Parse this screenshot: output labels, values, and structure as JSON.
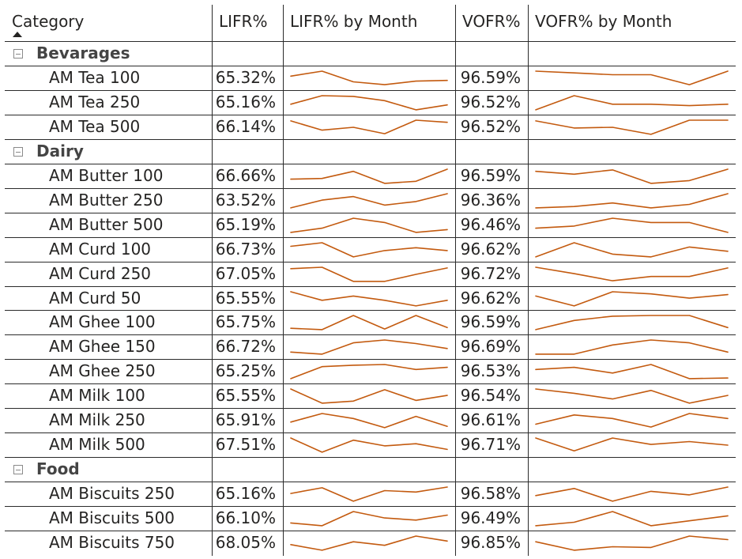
{
  "headers": {
    "category": "Category",
    "lifr": "LIFR%",
    "lifr_month": "LIFR% by Month",
    "vofr": "VOFR%",
    "vofr_month": "VOFR% by Month"
  },
  "colors": {
    "sparkline": "#c35a0f",
    "grid": "#2b2b2b"
  },
  "icons": {
    "sort": "sort-ascending-icon",
    "expand": "collapse-minus-icon"
  },
  "groups": [
    {
      "name": "Bevarages",
      "items": [
        {
          "name": "AM Tea 100",
          "lifr": "65.32%",
          "vofr": "96.59%",
          "lifr_trend": [
            0.35,
            0.0,
            0.75,
            0.95,
            0.7,
            0.65
          ],
          "vofr_trend": [
            0.0,
            0.12,
            0.25,
            0.25,
            0.95,
            0.0
          ]
        },
        {
          "name": "AM Tea 250",
          "lifr": "65.16%",
          "vofr": "96.52%",
          "lifr_trend": [
            0.6,
            0.0,
            0.05,
            0.35,
            1.0,
            0.65
          ],
          "vofr_trend": [
            1.0,
            0.0,
            0.6,
            0.6,
            0.7,
            0.6
          ]
        },
        {
          "name": "AM Tea 500",
          "lifr": "66.14%",
          "vofr": "96.52%",
          "lifr_trend": [
            0.05,
            0.7,
            0.5,
            0.95,
            0.0,
            0.15
          ],
          "vofr_trend": [
            0.05,
            0.55,
            0.5,
            1.0,
            0.0,
            0.0
          ]
        }
      ]
    },
    {
      "name": "Dairy",
      "items": [
        {
          "name": "AM Butter 100",
          "lifr": "66.66%",
          "vofr": "96.59%",
          "lifr_trend": [
            0.7,
            0.65,
            0.15,
            1.0,
            0.85,
            0.0
          ],
          "vofr_trend": [
            0.15,
            0.35,
            0.05,
            1.0,
            0.8,
            0.0
          ]
        },
        {
          "name": "AM Butter 250",
          "lifr": "63.52%",
          "vofr": "96.36%",
          "lifr_trend": [
            1.0,
            0.45,
            0.2,
            0.8,
            0.55,
            0.0
          ],
          "vofr_trend": [
            1.0,
            0.9,
            0.65,
            1.0,
            0.75,
            0.0
          ]
        },
        {
          "name": "AM Butter 500",
          "lifr": "65.19%",
          "vofr": "96.46%",
          "lifr_trend": [
            1.0,
            0.7,
            0.0,
            0.3,
            1.0,
            0.8
          ],
          "vofr_trend": [
            0.7,
            0.55,
            0.0,
            0.3,
            0.3,
            1.0
          ]
        },
        {
          "name": "AM Curd 100",
          "lifr": "66.73%",
          "vofr": "96.62%",
          "lifr_trend": [
            0.25,
            0.0,
            1.0,
            0.55,
            0.35,
            0.55
          ],
          "vofr_trend": [
            1.0,
            0.0,
            0.8,
            1.0,
            0.3,
            0.6
          ]
        },
        {
          "name": "AM Curd 250",
          "lifr": "67.05%",
          "vofr": "96.72%",
          "lifr_trend": [
            0.1,
            0.0,
            1.0,
            1.0,
            0.5,
            0.05
          ],
          "vofr_trend": [
            0.0,
            0.45,
            0.95,
            0.65,
            0.65,
            0.05
          ]
        },
        {
          "name": "AM Curd 50",
          "lifr": "65.55%",
          "vofr": "96.62%",
          "lifr_trend": [
            0.0,
            0.6,
            0.3,
            0.6,
            1.0,
            0.6
          ],
          "vofr_trend": [
            0.3,
            1.0,
            0.0,
            0.15,
            0.45,
            0.2
          ]
        },
        {
          "name": "AM Ghee 100",
          "lifr": "65.75%",
          "vofr": "96.59%",
          "lifr_trend": [
            0.9,
            1.0,
            0.0,
            0.95,
            0.0,
            0.85
          ],
          "vofr_trend": [
            1.0,
            0.35,
            0.05,
            0.0,
            0.0,
            0.85
          ]
        },
        {
          "name": "AM Ghee 150",
          "lifr": "66.72%",
          "vofr": "96.69%",
          "lifr_trend": [
            0.85,
            1.0,
            0.2,
            0.0,
            0.25,
            0.6
          ],
          "vofr_trend": [
            1.0,
            1.0,
            0.35,
            0.0,
            0.2,
            0.85
          ]
        },
        {
          "name": "AM Ghee 250",
          "lifr": "65.25%",
          "vofr": "96.53%",
          "lifr_trend": [
            1.0,
            0.15,
            0.05,
            0.0,
            0.35,
            0.2
          ],
          "vofr_trend": [
            0.35,
            0.2,
            0.6,
            0.0,
            1.0,
            0.95
          ]
        },
        {
          "name": "AM Milk 100",
          "lifr": "65.55%",
          "vofr": "96.54%",
          "lifr_trend": [
            0.0,
            1.0,
            0.85,
            0.05,
            0.8,
            0.45
          ],
          "vofr_trend": [
            0.0,
            0.3,
            0.7,
            0.1,
            1.0,
            0.45
          ]
        },
        {
          "name": "AM Milk 250",
          "lifr": "65.91%",
          "vofr": "96.61%",
          "lifr_trend": [
            0.6,
            0.0,
            0.35,
            1.0,
            0.2,
            0.9
          ],
          "vofr_trend": [
            0.75,
            0.1,
            0.35,
            0.95,
            0.0,
            0.35
          ]
        },
        {
          "name": "AM Milk 500",
          "lifr": "67.51%",
          "vofr": "96.71%",
          "lifr_trend": [
            0.0,
            1.0,
            0.15,
            0.55,
            0.4,
            0.8
          ],
          "vofr_trend": [
            0.0,
            0.9,
            0.0,
            0.45,
            0.25,
            0.5
          ]
        }
      ]
    },
    {
      "name": "Food",
      "items": [
        {
          "name": "AM Biscuits 250",
          "lifr": "65.16%",
          "vofr": "96.58%",
          "lifr_trend": [
            0.45,
            0.05,
            1.0,
            0.25,
            0.35,
            0.0
          ],
          "vofr_trend": [
            0.6,
            0.1,
            1.0,
            0.3,
            0.55,
            0.0
          ]
        },
        {
          "name": "AM Biscuits 500",
          "lifr": "66.10%",
          "vofr": "96.49%",
          "lifr_trend": [
            0.8,
            1.0,
            0.0,
            0.45,
            0.6,
            0.25
          ],
          "vofr_trend": [
            1.0,
            0.75,
            0.0,
            1.0,
            0.65,
            0.3
          ]
        },
        {
          "name": "AM Biscuits 750",
          "lifr": "68.05%",
          "vofr": "96.85%",
          "lifr_trend": [
            0.6,
            1.0,
            0.4,
            0.65,
            0.0,
            0.35
          ],
          "vofr_trend": [
            0.4,
            1.0,
            0.75,
            0.8,
            0.0,
            0.25
          ]
        }
      ]
    }
  ]
}
